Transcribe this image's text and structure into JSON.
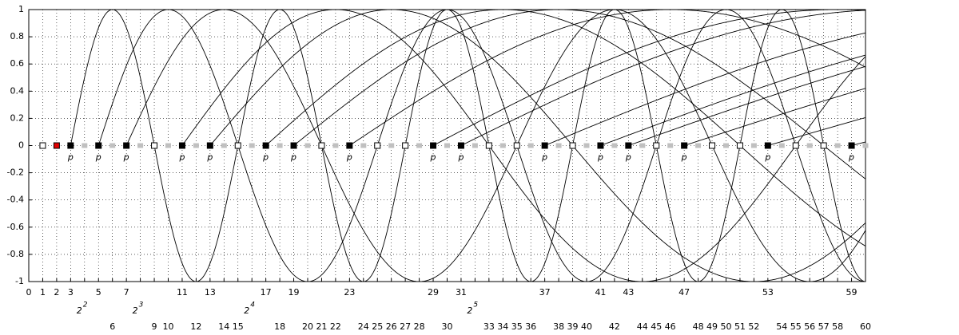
{
  "chart_data": {
    "type": "sieve",
    "xlim": [
      0,
      60
    ],
    "ylim": [
      -1,
      1
    ],
    "yticks": [
      -1,
      -0.8,
      -0.6,
      -0.4,
      -0.2,
      0,
      0.2,
      0.4,
      0.6,
      0.8,
      1
    ],
    "grid": true,
    "xticks_row1": [
      0,
      1,
      2,
      3,
      5,
      7,
      11,
      13,
      17,
      19,
      23,
      29,
      31,
      37,
      41,
      43,
      47,
      53,
      59
    ],
    "xticks_row2": [
      {
        "value": 4,
        "label": "2",
        "exponent": 2
      },
      {
        "value": 8,
        "label": "2",
        "exponent": 3
      },
      {
        "value": 16,
        "label": "2",
        "exponent": 4
      },
      {
        "value": 32,
        "label": "2",
        "exponent": 5
      }
    ],
    "xticks_row3": [
      6,
      9,
      10,
      12,
      14,
      15,
      18,
      20,
      21,
      22,
      24,
      25,
      26,
      27,
      28,
      30,
      33,
      34,
      35,
      36,
      38,
      39,
      40,
      42,
      44,
      45,
      46,
      48,
      49,
      50,
      51,
      52,
      54,
      55,
      56,
      57,
      58,
      60
    ],
    "prime_label": "p",
    "unit": [
      1
    ],
    "two": [
      2
    ],
    "two_color": "#e00000",
    "primes": [
      3,
      5,
      7,
      11,
      13,
      17,
      19,
      23,
      29,
      31,
      37,
      41,
      43,
      47,
      53,
      59
    ],
    "prime_color": "#000000",
    "odd_composites": [
      9,
      15,
      21,
      25,
      27,
      33,
      35,
      39,
      45,
      49,
      51,
      55,
      57
    ],
    "evens": [
      4,
      6,
      8,
      10,
      12,
      14,
      16,
      18,
      20,
      22,
      24,
      26,
      28,
      30,
      32,
      34,
      36,
      38,
      40,
      42,
      44,
      46,
      48,
      50,
      52,
      54,
      56,
      58,
      60
    ],
    "even_color": "#c0c0c0",
    "curve_color": "#000000"
  }
}
